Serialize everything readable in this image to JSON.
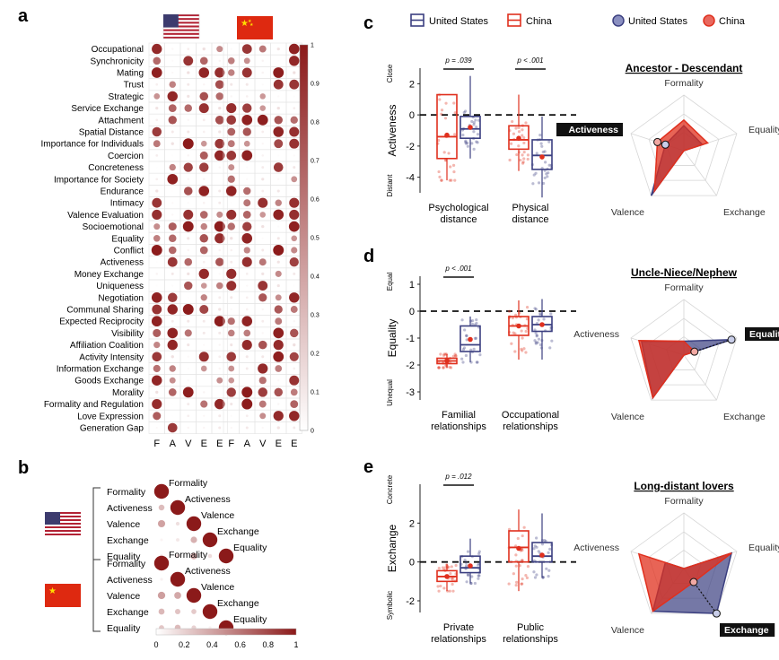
{
  "palette": {
    "us": "#3b3f80",
    "us_fill": "#8a8fc0",
    "cn": "#e0301e",
    "cn_fill": "#e8685e",
    "dark": "#8b1a1a"
  },
  "panels": {
    "a": "a",
    "b": "b",
    "c": "c",
    "d": "d",
    "e": "e"
  },
  "legend": {
    "us": "United States",
    "cn": "China"
  },
  "panel_a": {
    "rows": [
      "Occupational",
      "Synchronicity",
      "Mating",
      "Trust",
      "Strategic",
      "Service Exchange",
      "Attachment",
      "Spatial Distance",
      "Importance for Individuals",
      "Coercion",
      "Concreteness",
      "Importance for Society",
      "Endurance",
      "Intimacy",
      "Valence Evaluation",
      "Socioemotional",
      "Equality",
      "Conflict",
      "Activeness",
      "Money Exchange",
      "Uniqueness",
      "Negotiation",
      "Communal Sharing",
      "Expected Reciprocity",
      "Visibility",
      "Affiliation Coalition",
      "Activity Intensity",
      "Information Exchange",
      "Goods Exchange",
      "Morality",
      "Formality and Regulation",
      "Love Expression",
      "Generation Gap"
    ],
    "columns": [
      "F",
      "A",
      "V",
      "E",
      "E"
    ],
    "colorbar_ticks": [
      "1",
      "0.9",
      "0.8",
      "0.7",
      "0.6",
      "0.5",
      "0.4",
      "0.3",
      "0.2",
      "0.1",
      "0"
    ]
  },
  "panel_b": {
    "dims": [
      "Formality",
      "Activeness",
      "Valence",
      "Exchange",
      "Equality"
    ],
    "colorbar_ticks": [
      "0",
      "0.2",
      "0.4",
      "0.6",
      "0.8",
      "1"
    ]
  },
  "chart_data": [
    {
      "type": "boxplot",
      "panel": "c",
      "title": "",
      "ylabel": "Activeness",
      "ylabel_top": "Close",
      "ylabel_bottom": "Distant",
      "ylim": [
        -5,
        3
      ],
      "yticks": [
        "2",
        "0",
        "-2",
        "-4"
      ],
      "categories": [
        "Psychological distance",
        "Physical distance"
      ],
      "significance": [
        "p = .039",
        "p < .001"
      ],
      "series": [
        {
          "name": "China",
          "boxes": [
            {
              "min": -4.2,
              "q1": -2.8,
              "median": -1.4,
              "q3": 1.3,
              "max": 1.3,
              "mean": -1.3
            },
            {
              "min": -3.6,
              "q1": -2.2,
              "median": -1.6,
              "q3": -0.7,
              "max": 1.3,
              "mean": -1.5
            }
          ]
        },
        {
          "name": "United States",
          "boxes": [
            {
              "min": -2.8,
              "q1": -1.5,
              "median": -0.9,
              "q3": -0.1,
              "max": 2.5,
              "mean": -0.8
            },
            {
              "min": -5.3,
              "q1": -3.5,
              "median": -2.6,
              "q3": -1.6,
              "max": -0.1,
              "mean": -2.7
            }
          ]
        }
      ]
    },
    {
      "type": "boxplot",
      "panel": "d",
      "title": "",
      "ylabel": "Equality",
      "ylabel_top": "Equal",
      "ylabel_bottom": "Unequal",
      "ylim": [
        -3.3,
        1.3
      ],
      "yticks": [
        "1",
        "0",
        "-1",
        "-2",
        "-3"
      ],
      "categories": [
        "Familial relationships",
        "Occupational relationships"
      ],
      "significance": [
        "p < .001",
        ""
      ],
      "series": [
        {
          "name": "China",
          "boxes": [
            {
              "min": -2.1,
              "q1": -1.95,
              "median": -1.85,
              "q3": -1.75,
              "max": -1.6,
              "mean": -1.85
            },
            {
              "min": -1.8,
              "q1": -0.9,
              "median": -0.55,
              "q3": -0.2,
              "max": 0.4,
              "mean": -0.55
            }
          ]
        },
        {
          "name": "United States",
          "boxes": [
            {
              "min": -1.9,
              "q1": -1.5,
              "median": -1.25,
              "q3": -0.55,
              "max": -0.2,
              "mean": -1.05
            },
            {
              "min": -1.8,
              "q1": -0.75,
              "median": -0.5,
              "q3": -0.2,
              "max": 0.45,
              "mean": -0.5
            }
          ]
        }
      ]
    },
    {
      "type": "boxplot",
      "panel": "e",
      "title": "",
      "ylabel": "Exchange",
      "ylabel_top": "Concrete",
      "ylabel_bottom": "Symbolic",
      "ylim": [
        -2.6,
        4
      ],
      "yticks": [
        "2",
        "0",
        "-2"
      ],
      "categories": [
        "Private relationships",
        "Public relationships"
      ],
      "significance": [
        "p = .012",
        ""
      ],
      "series": [
        {
          "name": "China",
          "boxes": [
            {
              "min": -1.5,
              "q1": -1.0,
              "median": -0.75,
              "q3": -0.45,
              "max": -0.1,
              "mean": -0.75
            },
            {
              "min": -1.5,
              "q1": 0.0,
              "median": 0.75,
              "q3": 1.6,
              "max": 2.7,
              "mean": 0.7
            }
          ]
        },
        {
          "name": "United States",
          "boxes": [
            {
              "min": -1.1,
              "q1": -0.55,
              "median": -0.3,
              "q3": 0.3,
              "max": 1.2,
              "mean": -0.2
            },
            {
              "min": -0.8,
              "q1": 0.0,
              "median": 0.3,
              "q3": 1.0,
              "max": 2.5,
              "mean": 0.35
            }
          ]
        }
      ]
    },
    {
      "type": "radar",
      "panel": "c",
      "title": "Ancestor - Descendant",
      "axes": [
        "Formality",
        "Equality",
        "Exchange",
        "Valence",
        "Activeness"
      ],
      "highlight": "Activeness",
      "series": [
        {
          "name": "United States",
          "values": [
            0.45,
            0.35,
            0.0,
            1.0,
            0.35
          ]
        },
        {
          "name": "China",
          "values": [
            0.55,
            0.45,
            0.0,
            0.9,
            0.5
          ]
        }
      ]
    },
    {
      "type": "radar",
      "panel": "d",
      "title": "Uncle-Niece/Nephew",
      "axes": [
        "Formality",
        "Equality",
        "Exchange",
        "Valence",
        "Activeness"
      ],
      "highlight": "Equality",
      "series": [
        {
          "name": "United States",
          "values": [
            0.25,
            0.9,
            0.0,
            0.95,
            0.8
          ]
        },
        {
          "name": "China",
          "values": [
            0.25,
            0.2,
            0.0,
            0.95,
            0.85
          ]
        }
      ]
    },
    {
      "type": "radar",
      "panel": "e",
      "title": "Long-distant lovers",
      "axes": [
        "Formality",
        "Equality",
        "Exchange",
        "Valence",
        "Activeness"
      ],
      "highlight": "Exchange",
      "series": [
        {
          "name": "United States",
          "values": [
            0.0,
            0.9,
            1.0,
            0.95,
            0.35
          ]
        },
        {
          "name": "China",
          "values": [
            0.0,
            0.9,
            0.3,
            0.95,
            0.85
          ]
        }
      ]
    }
  ]
}
